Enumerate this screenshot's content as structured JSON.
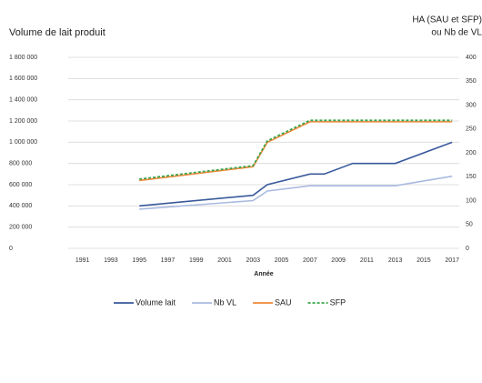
{
  "chart_data": {
    "type": "line",
    "title": "Volume de lait produit",
    "y2_title": [
      "HA (SAU et SFP)",
      "ou Nb de VL"
    ],
    "xlabel": "Année",
    "xlim": [
      1990,
      2017.5
    ],
    "xticks": [
      1991,
      1993,
      1995,
      1997,
      1999,
      2001,
      2003,
      2005,
      2007,
      2009,
      2011,
      2013,
      2015,
      2017
    ],
    "ylim": [
      0,
      1800000
    ],
    "yticks": [
      0,
      {
        "value": 200000,
        "label": "200 000"
      },
      {
        "value": 400000,
        "label": "400 000"
      },
      {
        "value": 600000,
        "label": "600 000"
      },
      {
        "value": 800000,
        "label": "800 000"
      },
      {
        "value": 1000000,
        "label": "1 000 000"
      },
      {
        "value": 1200000,
        "label": "1 200 000"
      },
      {
        "value": 1400000,
        "label": "1 400 000"
      },
      {
        "value": 1600000,
        "label": "1 600 000"
      },
      {
        "value": 1800000,
        "label": "1 800 000"
      }
    ],
    "y2lim": [
      0,
      400
    ],
    "y2ticks": [
      0,
      50,
      100,
      150,
      200,
      250,
      300,
      350,
      400
    ],
    "grid": true,
    "legend": "bottom",
    "series": [
      {
        "name": "Volume lait",
        "color": "#3a5a9c",
        "dashed": false,
        "x": [
          1995,
          2003,
          2004,
          2007,
          2008,
          2010,
          2013,
          2017
        ],
        "values": [
          400000,
          500000,
          600000,
          700000,
          700000,
          800000,
          800000,
          1000000
        ]
      },
      {
        "name": "Nb VL",
        "color": "#a9badf",
        "dashed": false,
        "axis": "y2",
        "x": [
          1995,
          2003,
          2004,
          2007,
          2013,
          2017
        ],
        "values": [
          82,
          100,
          120,
          131,
          131,
          151
        ]
      },
      {
        "name": "SAU",
        "color": "#f0883a",
        "dashed": false,
        "axis": "y2",
        "x": [
          1995,
          2003,
          2004,
          2007,
          2017
        ],
        "values": [
          142,
          171,
          222,
          265,
          265
        ]
      },
      {
        "name": "SFP",
        "color": "#3aa54a",
        "dashed": true,
        "axis": "y2",
        "x": [
          1995,
          2003,
          2004,
          2007,
          2017
        ],
        "values": [
          145,
          173,
          225,
          268,
          268
        ]
      }
    ]
  }
}
